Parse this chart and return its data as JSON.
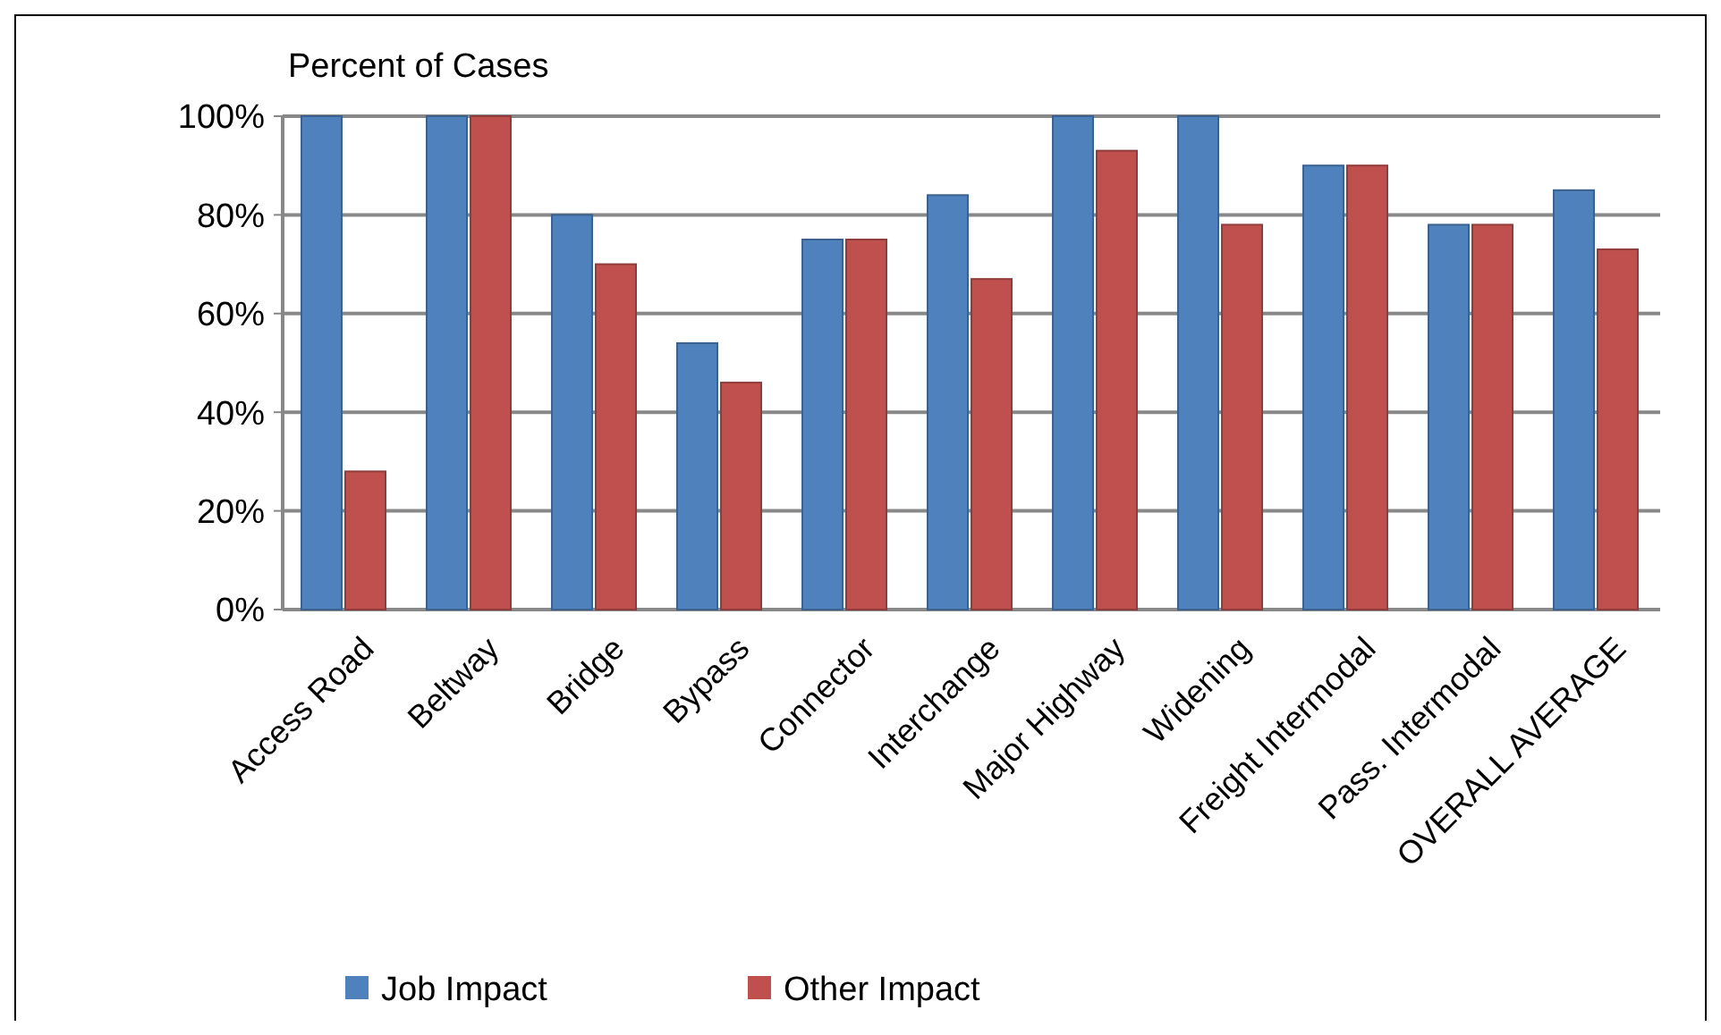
{
  "chart_data": {
    "type": "bar",
    "ylabel": "Percent of Cases",
    "categories": [
      "Access Road",
      "Beltway",
      "Bridge",
      "Bypass",
      "Connector",
      "Interchange",
      "Major Highway",
      "Widening",
      "Freight Intermodal",
      "Pass. Intermodal",
      "OVERALL AVERAGE"
    ],
    "series": [
      {
        "name": "Job Impact",
        "color": "#4f81bd",
        "values": [
          100,
          100,
          80,
          54,
          75,
          84,
          100,
          100,
          90,
          78,
          85
        ]
      },
      {
        "name": "Other Impact",
        "color": "#c0504d",
        "values": [
          28,
          100,
          70,
          46,
          75,
          67,
          93,
          78,
          90,
          78,
          73
        ]
      }
    ],
    "ylim": [
      0,
      100
    ],
    "yticks": [
      {
        "value": 0,
        "label": "0%"
      },
      {
        "value": 20,
        "label": "20%"
      },
      {
        "value": 40,
        "label": "40%"
      },
      {
        "value": 60,
        "label": "60%"
      },
      {
        "value": 80,
        "label": "80%"
      },
      {
        "value": 100,
        "label": "100%"
      }
    ],
    "grid": "y",
    "legend": "bottom"
  }
}
